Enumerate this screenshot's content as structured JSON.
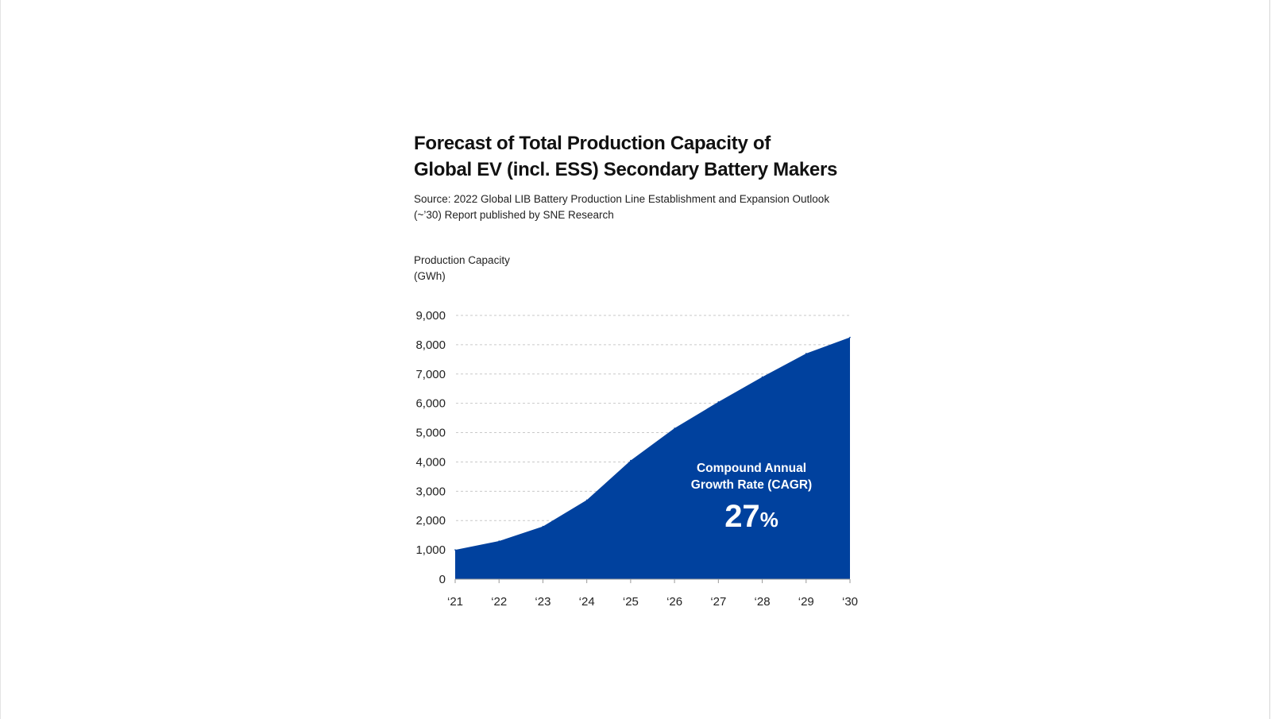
{
  "chart_data": {
    "type": "area",
    "title_lines": [
      "Forecast of Total Production Capacity of",
      "Global EV (incl. ESS) Secondary Battery Makers"
    ],
    "source_lines": [
      "Source: 2022 Global LIB Battery Production Line Establishment and Expansion Outlook",
      "(~’30) Report published by SNE Research"
    ],
    "ylabel_lines": [
      "Production Capacity",
      "(GWh)"
    ],
    "xlabel": "",
    "categories": [
      "‘21",
      "‘22",
      "‘23",
      "‘24",
      "‘25",
      "‘26",
      "‘27",
      "‘28",
      "‘29",
      "‘30"
    ],
    "values": [
      1000,
      1300,
      1800,
      2700,
      4050,
      5150,
      6050,
      6900,
      7700,
      8250
    ],
    "y_ticks": [
      "0",
      "1,000",
      "2,000",
      "3,000",
      "4,000",
      "5,000",
      "6,000",
      "7,000",
      "8,000",
      "9,000"
    ],
    "ylim": [
      0,
      9000
    ],
    "grid": true,
    "fill_color": "#00419E",
    "annotation": {
      "line1": "Compound Annual",
      "line2": "Growth Rate (CAGR)",
      "value": "27",
      "unit": "%"
    }
  }
}
